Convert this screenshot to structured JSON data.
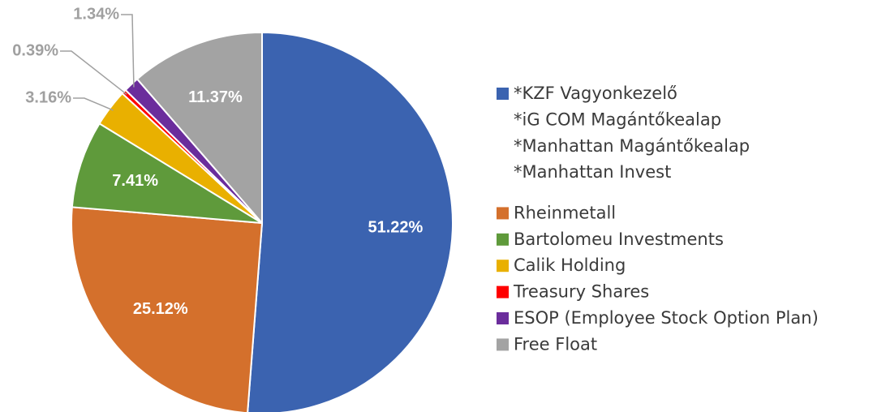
{
  "chart_data": {
    "type": "pie",
    "categories": [
      "*KZF Vagyonkezelő",
      "Rheinmetall",
      "Bartolomeu Investments",
      "Calik Holding",
      "Treasury Shares",
      "ESOP (Employee Stock Option Plan)",
      "Free Float"
    ],
    "legend_sublines": [
      "*iG COM Magántőkealap",
      "*Manhattan Magántőkealap",
      "*Manhattan Invest"
    ],
    "values": [
      51.22,
      25.12,
      7.41,
      3.16,
      0.39,
      1.34,
      11.37
    ],
    "value_labels": [
      "51.22%",
      "25.12%",
      "7.41%",
      "3.16%",
      "0.39%",
      "1.34%",
      "11.37%"
    ],
    "colors": [
      "#3b63b0",
      "#d4702c",
      "#5f9a3b",
      "#e9b000",
      "#ff0000",
      "#6b2d9c",
      "#a3a3a3"
    ],
    "legend": "right"
  }
}
